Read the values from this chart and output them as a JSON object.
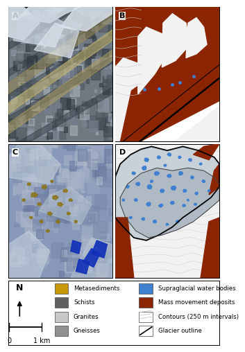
{
  "panel_labels": [
    "A",
    "B",
    "C",
    "D"
  ],
  "legend_items_left": [
    {
      "label": "Metasediments",
      "color": "#C8980A"
    },
    {
      "label": "Schists",
      "color": "#606060"
    },
    {
      "label": "Granites",
      "color": "#C8C8C8"
    },
    {
      "label": "Gneisses",
      "color": "#909090"
    }
  ],
  "legend_items_right": [
    {
      "label": "Supraglacial water bodies",
      "color": "#4080D0"
    },
    {
      "label": "Mass movement deposits",
      "color": "#8B2500"
    },
    {
      "label": "Contours (250 m intervals)",
      "color": "#D8D8D8"
    },
    {
      "label": "Glacier outline",
      "color": "#000000"
    }
  ],
  "mass_color": "#8B2500",
  "metased_color": "#C8980A",
  "schist_color": "#606060",
  "granite_color": "#C8C8C8",
  "gneiss_color": "#909090",
  "water_color": "#4080D0",
  "glacier_fill": "#B8C0C8",
  "glacier_light": "#D8DDE2",
  "map_bg": "#F2F2F2",
  "contour_color": "#C8C8C8",
  "background_color": "#FFFFFF"
}
